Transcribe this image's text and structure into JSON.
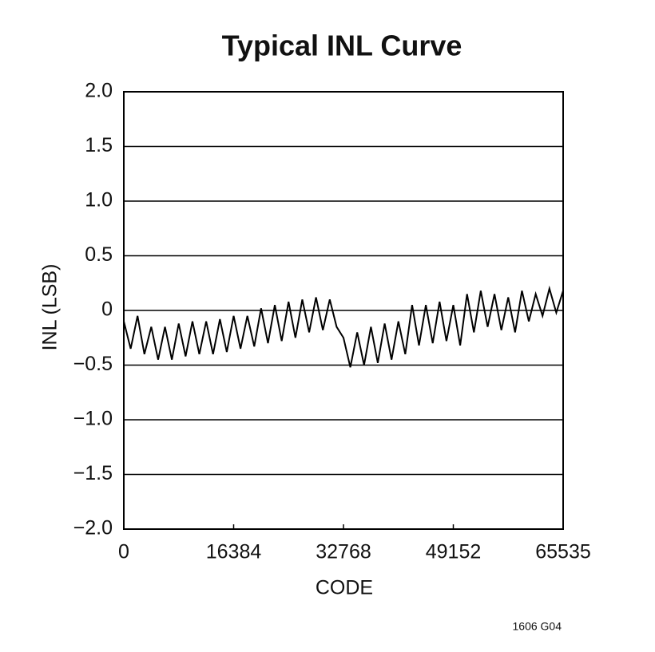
{
  "chart_data": {
    "type": "line",
    "title": "Typical INL Curve",
    "x_label": "CODE",
    "y_label": "INL (LSB)",
    "note": "1606 G04",
    "x": [
      0,
      1024,
      2048,
      3072,
      4096,
      5120,
      6144,
      7168,
      8192,
      9216,
      10240,
      11264,
      12288,
      13312,
      14336,
      15360,
      16384,
      17408,
      18432,
      19456,
      20480,
      21504,
      22528,
      23552,
      24576,
      25600,
      26624,
      27648,
      28672,
      29696,
      30720,
      31744,
      32768,
      33792,
      34816,
      35840,
      36864,
      37888,
      38912,
      39936,
      40960,
      41984,
      43008,
      44032,
      45056,
      46080,
      47104,
      48128,
      49152,
      50176,
      51200,
      52224,
      53248,
      54272,
      55296,
      56320,
      57344,
      58368,
      59392,
      60416,
      61440,
      62464,
      63488,
      64512,
      65535
    ],
    "series": [
      {
        "name": "INL",
        "color": "#000000",
        "values": [
          -0.1,
          -0.35,
          -0.05,
          -0.4,
          -0.15,
          -0.45,
          -0.15,
          -0.45,
          -0.12,
          -0.42,
          -0.1,
          -0.4,
          -0.1,
          -0.4,
          -0.08,
          -0.38,
          -0.05,
          -0.35,
          -0.05,
          -0.33,
          0.02,
          -0.3,
          0.05,
          -0.28,
          0.08,
          -0.25,
          0.1,
          -0.2,
          0.12,
          -0.18,
          0.1,
          -0.15,
          -0.25,
          -0.52,
          -0.2,
          -0.5,
          -0.15,
          -0.48,
          -0.12,
          -0.45,
          -0.1,
          -0.4,
          0.05,
          -0.32,
          0.05,
          -0.3,
          0.08,
          -0.28,
          0.05,
          -0.32,
          0.15,
          -0.2,
          0.18,
          -0.15,
          0.15,
          -0.18,
          0.12,
          -0.2,
          0.18,
          -0.1,
          0.15,
          -0.05,
          0.2,
          -0.02,
          0.18
        ]
      }
    ],
    "xlim": [
      0,
      65535
    ],
    "xticks": [
      0,
      16384,
      32768,
      49152,
      65535
    ],
    "ylim": [
      -2,
      2
    ],
    "yticks": [
      {
        "value": -2,
        "label": "−2.0"
      },
      {
        "value": -1.5,
        "label": "−1.5"
      },
      {
        "value": -1,
        "label": "−1.0"
      },
      {
        "value": -0.5,
        "label": "−0.5"
      },
      0,
      {
        "value": 0.5,
        "label": "0.5"
      },
      {
        "value": 1,
        "label": "1.0"
      },
      {
        "value": 1.5,
        "label": "1.5"
      },
      {
        "value": 2,
        "label": "2.0"
      }
    ],
    "grid": true
  }
}
